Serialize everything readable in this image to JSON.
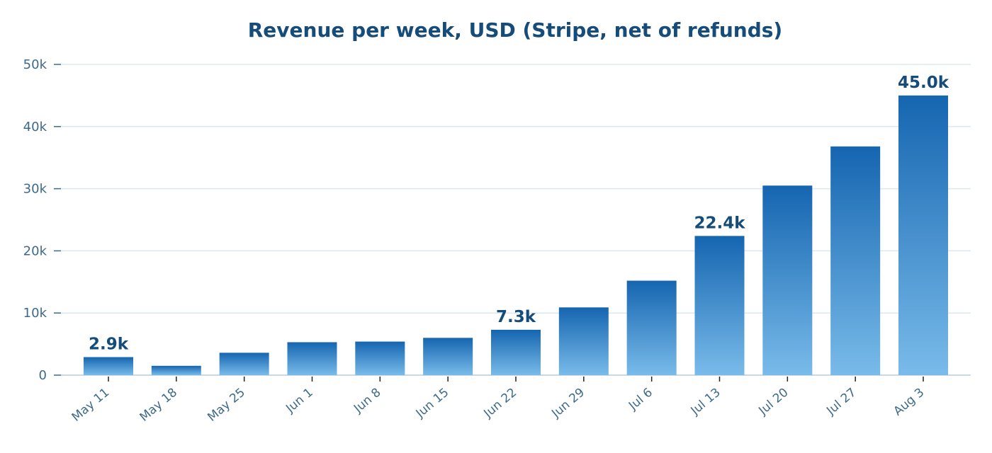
{
  "chart_data": {
    "type": "bar",
    "title": "Revenue per week, USD (Stripe, net of refunds)",
    "xlabel": "",
    "ylabel": "",
    "ylim": [
      0,
      50000
    ],
    "yticks": [
      0,
      10000,
      20000,
      30000,
      40000,
      50000
    ],
    "ytick_labels": [
      "0",
      "10k",
      "20k",
      "30k",
      "40k",
      "50k"
    ],
    "grid": "horizontal",
    "categories": [
      "May 11",
      "May 18",
      "May 25",
      "Jun 1",
      "Jun 8",
      "Jun 15",
      "Jun 22",
      "Jun 29",
      "Jul 6",
      "Jul 13",
      "Jul 20",
      "Jul 27",
      "Aug 3"
    ],
    "values": [
      2900,
      1500,
      3600,
      5300,
      5400,
      6000,
      7300,
      10900,
      15200,
      22400,
      30500,
      36800,
      45000
    ],
    "annotations": [
      {
        "category": "May 11",
        "text": "2.9k"
      },
      {
        "category": "Jun 22",
        "text": "7.3k"
      },
      {
        "category": "Jul 13",
        "text": "22.4k"
      },
      {
        "category": "Aug 3",
        "text": "45.0k"
      }
    ],
    "colors": {
      "bar_top": "#1565b0",
      "bar_bottom": "#79bbea",
      "title": "#154c79",
      "tick_text": "#3d6a8a",
      "grid": "#dbe8f1",
      "axis": "#c8dae8"
    }
  }
}
